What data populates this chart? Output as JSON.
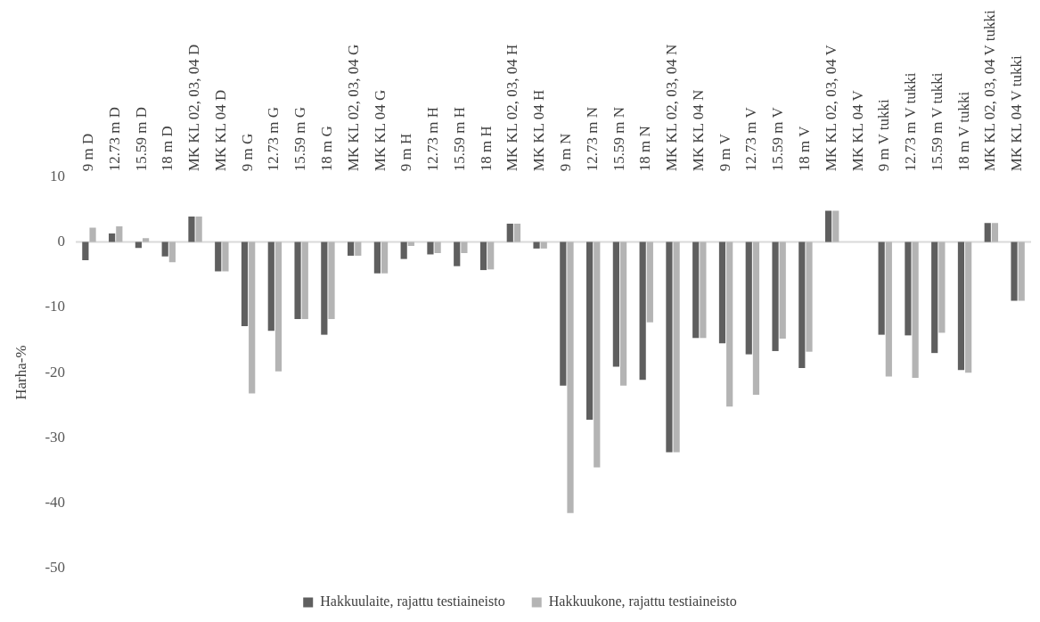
{
  "chart_data": {
    "type": "bar",
    "ylabel": "Harha-%",
    "categories": [
      "9 m D",
      "12.73 m D",
      "15.59 m D",
      "18 m D",
      "MK KL 02, 03, 04 D",
      "MK KL 04 D",
      "9 m G",
      "12.73 m G",
      "15.59 m G",
      "18 m G",
      "MK KL 02, 03, 04 G",
      "MK KL 04 G",
      "9 m H",
      "12.73 m H",
      "15.59 m H",
      "18 m H",
      "MK KL 02, 03, 04 H",
      "MK KL 04 H",
      "9 m N",
      "12.73 m N",
      "15.59 m N",
      "18 m N",
      "MK KL 02, 03, 04 N",
      "MK KL 04 N",
      "9 m V",
      "12.73 m V",
      "15.59 m V",
      "18 m V",
      "MK KL 02, 03, 04 V",
      "MK KL 04 V",
      "9 m V tukki",
      "12.73 m V tukki",
      "15.59 m V tukki",
      "18 m V tukki",
      "MK KL 02, 03, 04 V tukki",
      "MK KL 04 V tukki"
    ],
    "series": [
      {
        "name": "Hakkuulaite, rajattu testiaineisto",
        "color": "#5f5f5f",
        "values": [
          -2.8,
          1.3,
          -0.9,
          -2.2,
          3.9,
          -4.5,
          -12.9,
          -13.6,
          -11.8,
          -14.2,
          -2.1,
          -4.8,
          -2.6,
          -1.9,
          -3.7,
          -4.3,
          2.8,
          -1.0,
          -22.0,
          -27.2,
          -19.1,
          -21.1,
          -32.2,
          -14.7,
          -15.5,
          -17.2,
          -16.7,
          -19.3,
          4.8,
          null,
          -14.2,
          -14.3,
          -17.0,
          -19.6,
          2.9,
          -9.0
        ]
      },
      {
        "name": "Hakkuukone, rajattu testiaineisto",
        "color": "#b4b4b4",
        "values": [
          2.2,
          2.4,
          0.6,
          -3.1,
          3.9,
          -4.5,
          -23.2,
          -19.8,
          -11.8,
          -11.8,
          -2.1,
          -4.8,
          -0.6,
          -1.7,
          -1.7,
          -4.2,
          2.8,
          -1.0,
          -41.5,
          -34.5,
          -22.0,
          -12.3,
          -32.2,
          -14.7,
          -25.2,
          -23.4,
          -14.8,
          -16.8,
          4.8,
          null,
          -20.6,
          -20.8,
          -13.9,
          -20.0,
          2.9,
          -9.0
        ]
      }
    ],
    "ylim": [
      -50,
      10
    ],
    "yticks": [
      -50,
      -40,
      -30,
      -20,
      -10,
      0,
      10
    ],
    "ref_lines": [
      {
        "axis": "y",
        "value": 0,
        "color": "#d9d9d9"
      }
    ],
    "grid": false,
    "legend": "bottom"
  }
}
